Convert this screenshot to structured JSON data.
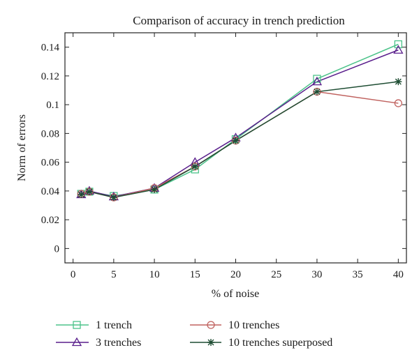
{
  "chart_data": {
    "type": "line",
    "title": "Comparison of accuracy in trench prediction",
    "xlabel": "% of noise",
    "ylabel": "Norm of errors",
    "xlim": [
      -1,
      41
    ],
    "ylim": [
      -0.01,
      0.15
    ],
    "x_ticks": [
      0,
      5,
      10,
      15,
      20,
      25,
      30,
      35,
      40
    ],
    "x_tick_labels": [
      "0",
      "5",
      "10",
      "15",
      "20",
      "25",
      "30",
      "35",
      "40"
    ],
    "y_ticks": [
      0,
      0.02,
      0.04,
      0.06,
      0.08,
      0.1,
      0.12,
      0.14
    ],
    "y_tick_labels": [
      "0",
      "0.02",
      "0.04",
      "0.06",
      "0.08",
      "0.1",
      "0.12",
      "0.14"
    ],
    "grid": false,
    "legend_position": "bottom",
    "x": [
      1,
      2,
      5,
      10,
      15,
      20,
      30,
      40
    ],
    "series": [
      {
        "name": "1 trench",
        "color": "#4cc38a",
        "marker": "square",
        "values": [
          0.038,
          0.0395,
          0.0365,
          0.041,
          0.055,
          0.076,
          0.118,
          0.142
        ]
      },
      {
        "name": "3 trenches",
        "color": "#5a1f8c",
        "marker": "triangle",
        "values": [
          0.0375,
          0.04,
          0.036,
          0.042,
          0.06,
          0.077,
          0.116,
          0.138
        ]
      },
      {
        "name": "10 trenches",
        "color": "#c0625f",
        "marker": "circle",
        "values": [
          0.038,
          0.0395,
          0.0355,
          0.042,
          0.057,
          0.075,
          0.109,
          0.101
        ]
      },
      {
        "name": "10 trenches superposed",
        "color": "#1e4d33",
        "marker": "asterisk",
        "values": [
          0.0375,
          0.0395,
          0.0355,
          0.041,
          0.057,
          0.075,
          0.109,
          0.116
        ]
      }
    ]
  }
}
